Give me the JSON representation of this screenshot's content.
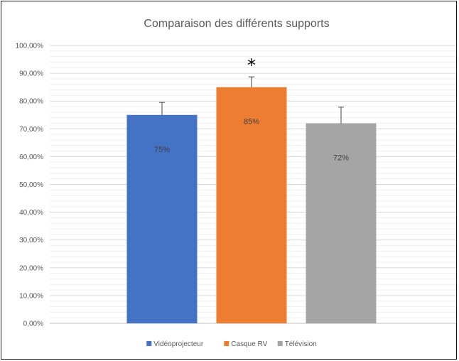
{
  "chart_data": {
    "type": "bar",
    "title": "Comparaison des différents supports",
    "xlabel": "",
    "ylabel": "",
    "categories": [
      "Vidéoprojecteur",
      "Casque RV",
      "Télévision"
    ],
    "values": [
      0.75,
      0.85,
      0.72
    ],
    "error": [
      0.045,
      0.037,
      0.058
    ],
    "data_labels": [
      "75%",
      "85%",
      "72%"
    ],
    "colors": [
      "#4472c4",
      "#ed7d31",
      "#a5a5a5"
    ],
    "ylim": [
      0,
      1
    ],
    "yticks": [
      0,
      0.1,
      0.2,
      0.3,
      0.4,
      0.5,
      0.6,
      0.7,
      0.8,
      0.9,
      1.0
    ],
    "ytick_labels": [
      "0,00%",
      "10,00%",
      "20,00%",
      "30,00%",
      "40,00%",
      "50,00%",
      "60,00%",
      "70,00%",
      "80,00%",
      "90,00%",
      "100,00%"
    ],
    "grid": true,
    "minor_grid": true,
    "legend": {
      "position": "bottom",
      "entries": [
        "Vidéoprojecteur",
        "Casque RV",
        "Télévision"
      ]
    },
    "annotations": [
      {
        "text": "*",
        "category": "Casque RV"
      }
    ]
  }
}
